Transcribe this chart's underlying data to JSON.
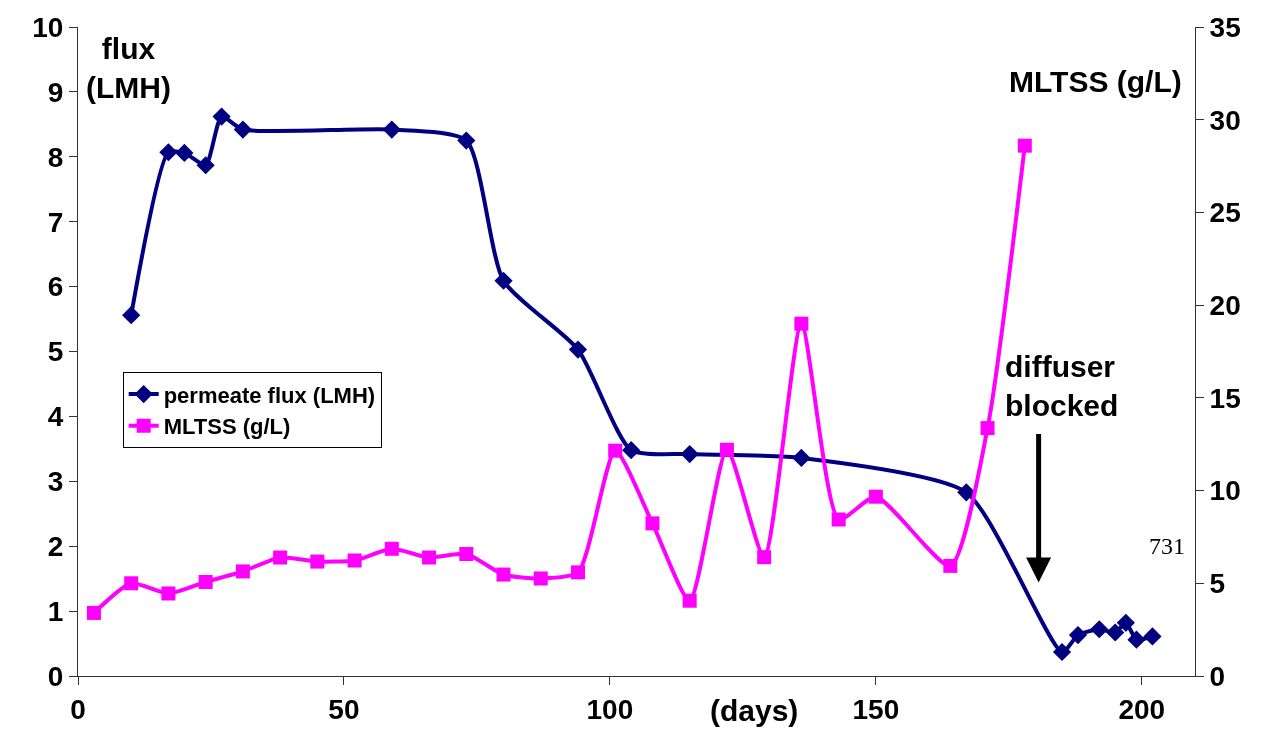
{
  "chart_data": {
    "type": "line",
    "xlabel": "(days)",
    "ylabel": "flux\n(LMH)",
    "y2label": "MLTSS (g/L)",
    "series": [
      {
        "name": "permeate flux (LMH)",
        "color": "#000080",
        "marker": "diamond",
        "x": [
          10,
          17,
          20,
          24,
          27,
          31,
          59,
          73,
          80,
          94,
          104,
          115,
          136,
          167,
          185,
          188,
          192,
          195,
          197,
          199,
          202
        ],
        "values": [
          5.56,
          8.07,
          8.06,
          7.87,
          8.62,
          8.42,
          8.42,
          8.25,
          6.09,
          5.03,
          3.48,
          3.42,
          3.36,
          2.83,
          0.37,
          0.63,
          0.72,
          0.67,
          0.82,
          0.56,
          0.61
        ]
      },
      {
        "name": "MLTSS (g/L)",
        "color": "#ff00ff",
        "marker": "square",
        "axis": "y2",
        "x": [
          3,
          10,
          17,
          24,
          31,
          38,
          45,
          52,
          59,
          66,
          73,
          80,
          87,
          94,
          101,
          108,
          115,
          122,
          129,
          136,
          143,
          150,
          164,
          171,
          178
        ],
        "values": [
          3.4,
          5.0,
          4.45,
          5.07,
          5.64,
          6.39,
          6.17,
          6.23,
          6.86,
          6.39,
          6.58,
          5.47,
          5.26,
          5.59,
          12.15,
          8.23,
          4.06,
          12.2,
          6.41,
          19.0,
          8.44,
          9.67,
          5.94,
          13.37,
          28.6
        ]
      }
    ],
    "xlim": [
      0,
      210
    ],
    "xticks": [
      0,
      50,
      100,
      150,
      200
    ],
    "ylim": [
      0,
      10
    ],
    "yticks": [
      0,
      1,
      2,
      3,
      4,
      5,
      6,
      7,
      8,
      9,
      10
    ],
    "y2lim": [
      0,
      35
    ],
    "y2ticks": [
      0,
      5,
      10,
      15,
      20,
      25,
      30,
      35
    ],
    "legend": "left",
    "annotations": [
      "diffuser\nblocked",
      "731"
    ]
  }
}
